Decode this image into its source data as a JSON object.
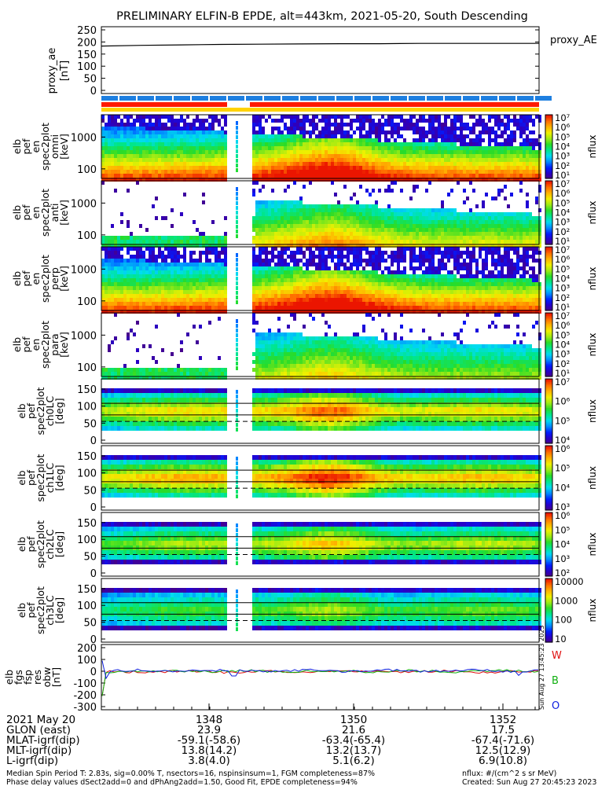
{
  "title": "PRELIMINARY ELFIN-B EPDE, alt=443km, 2021-05-20, South Descending",
  "proxy_panel": {
    "ylabel": [
      "proxy_ae",
      "[nT]"
    ],
    "ticks": [
      "250",
      "200",
      "150",
      "100",
      "50",
      "0"
    ],
    "legend": "proxy_AE",
    "values": [
      183,
      186,
      188,
      190,
      191,
      192,
      193,
      193,
      194,
      194,
      194,
      194
    ]
  },
  "bars": {
    "blue": "#1e7fe0",
    "red": "#ff1a00",
    "yellow": "#ffd200"
  },
  "spectrograms": [
    {
      "ylabel": [
        "elb",
        "pef",
        "en",
        "spec2plot",
        "omni",
        "[keV]"
      ],
      "ticks": [
        "1000",
        "100"
      ],
      "cbar_ticks": [
        "10⁷",
        "10⁶",
        "10⁵",
        "10⁴",
        "10³",
        "10²",
        "10¹"
      ],
      "cbar_label": "nflux",
      "kind": "energy",
      "intensity": 1.0
    },
    {
      "ylabel": [
        "elb",
        "pef",
        "en",
        "spec2plot",
        "anti",
        "[keV]"
      ],
      "ticks": [
        "1000",
        "100"
      ],
      "cbar_ticks": [
        "10⁷",
        "10⁶",
        "10⁵",
        "10⁴",
        "10³",
        "10²",
        "10¹"
      ],
      "cbar_label": "nflux",
      "kind": "energy_sparse",
      "intensity": 0.7
    },
    {
      "ylabel": [
        "elb",
        "pef",
        "en",
        "spec2plot",
        "perp",
        "[keV]"
      ],
      "ticks": [
        "1000",
        "100"
      ],
      "cbar_ticks": [
        "10⁷",
        "10⁶",
        "10⁵",
        "10⁴",
        "10³",
        "10²",
        "10¹"
      ],
      "cbar_label": "nflux",
      "kind": "energy",
      "intensity": 1.0
    },
    {
      "ylabel": [
        "elb",
        "pef",
        "en",
        "spec2plot",
        "para",
        "[keV]"
      ],
      "ticks": [
        "1000",
        "100"
      ],
      "cbar_ticks": [
        "10⁷",
        "10⁶",
        "10⁵",
        "10⁴",
        "10³",
        "10²",
        "10¹"
      ],
      "cbar_label": "nflux",
      "kind": "energy_sparse",
      "intensity": 0.6
    },
    {
      "ylabel": [
        "elb",
        "pef",
        "spec2plot",
        "ch0LC",
        "[deg]"
      ],
      "ticks": [
        "150",
        "100",
        "50",
        "0"
      ],
      "cbar_ticks": [
        "10⁷",
        "10⁶",
        "10⁵",
        "10⁴"
      ],
      "cbar_label": "nflux",
      "kind": "pitch",
      "intensity": 0.9
    },
    {
      "ylabel": [
        "elb",
        "pef",
        "spec2plot",
        "ch1LC",
        "[deg]"
      ],
      "ticks": [
        "150",
        "100",
        "50",
        "0"
      ],
      "cbar_ticks": [
        "10⁶",
        "10⁵",
        "10⁴",
        "10³"
      ],
      "cbar_label": "nflux",
      "kind": "pitch",
      "intensity": 1.0
    },
    {
      "ylabel": [
        "elb",
        "pef",
        "spec2plot",
        "ch2LC",
        "[deg]"
      ],
      "ticks": [
        "150",
        "100",
        "50",
        "0"
      ],
      "cbar_ticks": [
        "10⁶",
        "10⁵",
        "10⁴",
        "10³",
        "10²"
      ],
      "cbar_label": "nflux",
      "kind": "pitch",
      "intensity": 0.75
    },
    {
      "ylabel": [
        "elb",
        "pef",
        "spec2plot",
        "ch3LC",
        "[deg]"
      ],
      "ticks": [
        "150",
        "100",
        "50",
        "0"
      ],
      "cbar_ticks": [
        "10000",
        "1000",
        "100",
        "10"
      ],
      "cbar_label": "nflux",
      "kind": "pitch",
      "intensity": 0.6
    }
  ],
  "fgm_panel": {
    "ylabel": [
      "elb",
      "fgs",
      "fsp",
      "res",
      "obw",
      "[nT]"
    ],
    "ticks": [
      "200",
      "100",
      "0",
      "-100",
      "-200",
      "-300"
    ],
    "legend": [
      {
        "label": "W",
        "color": "#e01010"
      },
      {
        "label": "B",
        "color": "#10b010"
      },
      {
        "label": "O",
        "color": "#1020e0"
      }
    ],
    "stamp": "Sun Aug 27 13:45:23 2023"
  },
  "xaxis": {
    "row_labels": [
      "2021 May 20",
      "GLON (east)",
      "MLAT-igrf(dip)",
      "MLT-igrf(dip)",
      "L-igrf(dip)"
    ],
    "columns": [
      {
        "time": "1348",
        "glon": "23.9",
        "mlat": "-59.1(-58.6)",
        "mlt": "13.8(14.2)",
        "l": "3.8(4.0)"
      },
      {
        "time": "1350",
        "glon": "21.6",
        "mlat": "-63.4(-65.4)",
        "mlt": "13.2(13.7)",
        "l": "5.1(6.2)"
      },
      {
        "time": "1352",
        "glon": "17.5",
        "mlat": "-67.4(-71.6)",
        "mlt": "12.5(12.9)",
        "l": "6.9(10.8)"
      }
    ]
  },
  "footer": {
    "left1": "Median Spin Period T: 2.83s, sig=0.00% T, nsectors=16, nspinsinsum=1, FGM completeness=87%",
    "left2": "Phase delay values dSect2add=0 and dPhAng2add=1.50, Good Fit, EPDE completeness=94%",
    "right1": "nflux: #/(cm^2 s sr MeV)",
    "right2": "Created: Sun Aug 27 20:45:23 2023"
  }
}
